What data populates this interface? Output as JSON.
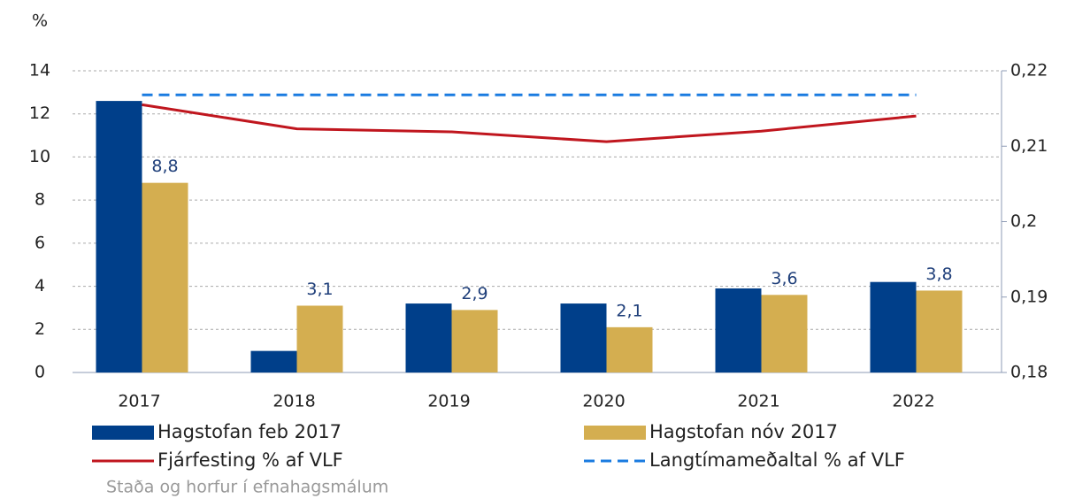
{
  "chart_data": {
    "type": "bar",
    "y_axis_label": "%",
    "source": "Staða og horfur í efnahagsmálum",
    "categories": [
      "2017",
      "2018",
      "2019",
      "2020",
      "2021",
      "2022"
    ],
    "series": [
      {
        "name": "Hagstofan feb 2017",
        "type": "bar",
        "color": "#003f8a",
        "values": [
          12.6,
          1.0,
          3.2,
          3.2,
          3.9,
          4.2
        ]
      },
      {
        "name": "Hagstofan nóv 2017",
        "type": "bar",
        "color": "#d4ae50",
        "values": [
          8.8,
          3.1,
          2.9,
          2.1,
          3.6,
          3.8
        ],
        "value_labels": [
          "8,8",
          "3,1",
          "2,9",
          "2,1",
          "3,6",
          "3,8"
        ]
      },
      {
        "name": "Fjárfesting % af VLF",
        "type": "line",
        "axis": "y2",
        "color": "#c0161e",
        "values": [
          0.2155,
          0.2123,
          0.2119,
          0.2106,
          0.212,
          0.214
        ]
      },
      {
        "name": "Langtímameðaltal % af VLF",
        "type": "line",
        "axis": "y2",
        "dashed": true,
        "color": "#1a7be0",
        "values": [
          0.2168,
          0.2168,
          0.2168,
          0.2168,
          0.2168,
          0.2168
        ]
      }
    ],
    "ylim": [
      0,
      14
    ],
    "yticks": [
      0,
      2,
      4,
      6,
      8,
      10,
      12,
      14
    ],
    "y2lim": [
      0.18,
      0.22
    ],
    "y2ticks": [
      {
        "value": 0.18,
        "label": "0,18"
      },
      {
        "value": 0.19,
        "label": "0,19"
      },
      {
        "value": 0.2,
        "label": "0,2"
      },
      {
        "value": 0.21,
        "label": "0,21"
      },
      {
        "value": 0.22,
        "label": "0,22"
      }
    ],
    "grid": true
  }
}
